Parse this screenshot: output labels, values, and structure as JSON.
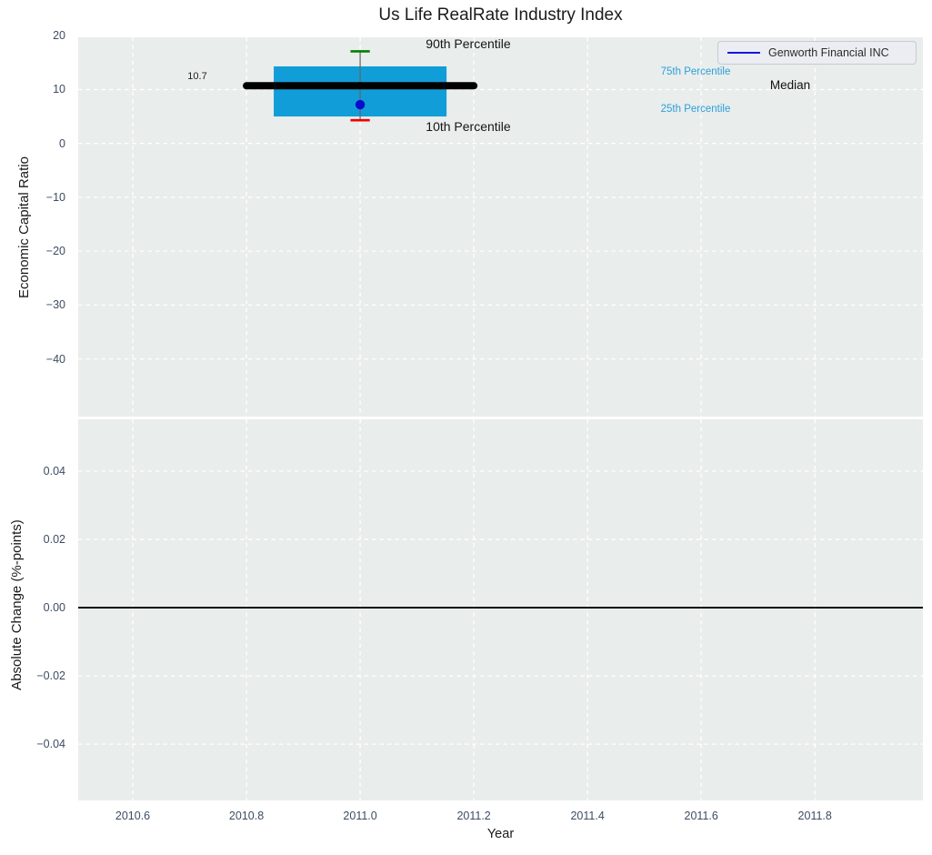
{
  "title": "Us Life RealRate Industry Index",
  "xlabel": "Year",
  "legend": {
    "label": "Genworth Financial INC"
  },
  "annotations": {
    "p90": "90th Percentile",
    "p10": "10th Percentile",
    "p75": "75th Percentile",
    "p25": "25th Percentile",
    "median": "Median",
    "median_value": "10.7"
  },
  "colors": {
    "panel_bg": "#e9edec",
    "grid": "#ffffff",
    "box_fill": "#119dd8",
    "median_line": "#000000",
    "whisker": "#666666",
    "p90_cap": "#008000",
    "p10_cap": "#f00000",
    "company_point": "#0a0acd",
    "legend_line": "#1414e0",
    "zero_line": "#000000",
    "tick_text": "#3d4c63",
    "percentile_text": "#2d9fd9"
  },
  "chart_data": [
    {
      "type": "boxplot",
      "title": "Us Life RealRate Industry Index",
      "ylabel": "Economic Capital Ratio",
      "grid": true,
      "legend_position": "upper right",
      "xlim": [
        2010.504,
        2011.99
      ],
      "ylim": [
        -50.7,
        19.7
      ],
      "xticks": [
        2010.6,
        2010.8,
        2011.0,
        2011.2,
        2011.4,
        2011.6,
        2011.8
      ],
      "xtick_labels": [
        "2010.6",
        "2010.8",
        "2011.0",
        "2011.2",
        "2011.4",
        "2011.6",
        "2011.8"
      ],
      "yticks": [
        20,
        10,
        0,
        -10,
        -20,
        -30,
        -40
      ],
      "ytick_labels": [
        "20",
        "10",
        "0",
        "−10",
        "−20",
        "−30",
        "−40"
      ],
      "box": {
        "x": 2011.0,
        "p90": 17.1,
        "q3": 14.3,
        "median": 10.7,
        "q1": 5.0,
        "p10": 4.3,
        "box_halfwidth": 0.152,
        "median_halfwidth": 0.2,
        "cap_halfwidth": 0.017
      },
      "company_point": {
        "name": "Genworth Financial INC",
        "x": 2011.0,
        "y": 7.2
      }
    },
    {
      "type": "line",
      "ylabel": "Absolute Change (%-points)",
      "xlabel": "Year",
      "grid": true,
      "xlim": [
        2010.504,
        2011.99
      ],
      "ylim": [
        -0.0565,
        0.0552
      ],
      "xticks": [
        2010.6,
        2010.8,
        2011.0,
        2011.2,
        2011.4,
        2011.6,
        2011.8
      ],
      "xtick_labels": [
        "2010.6",
        "2010.8",
        "2011.0",
        "2011.2",
        "2011.4",
        "2011.6",
        "2011.8"
      ],
      "yticks": [
        0.04,
        0.02,
        0,
        -0.02,
        -0.04
      ],
      "ytick_labels": [
        "0.04",
        "0.02",
        "0.00",
        "−0.02",
        "−0.04"
      ],
      "zero_line": 0
    }
  ]
}
